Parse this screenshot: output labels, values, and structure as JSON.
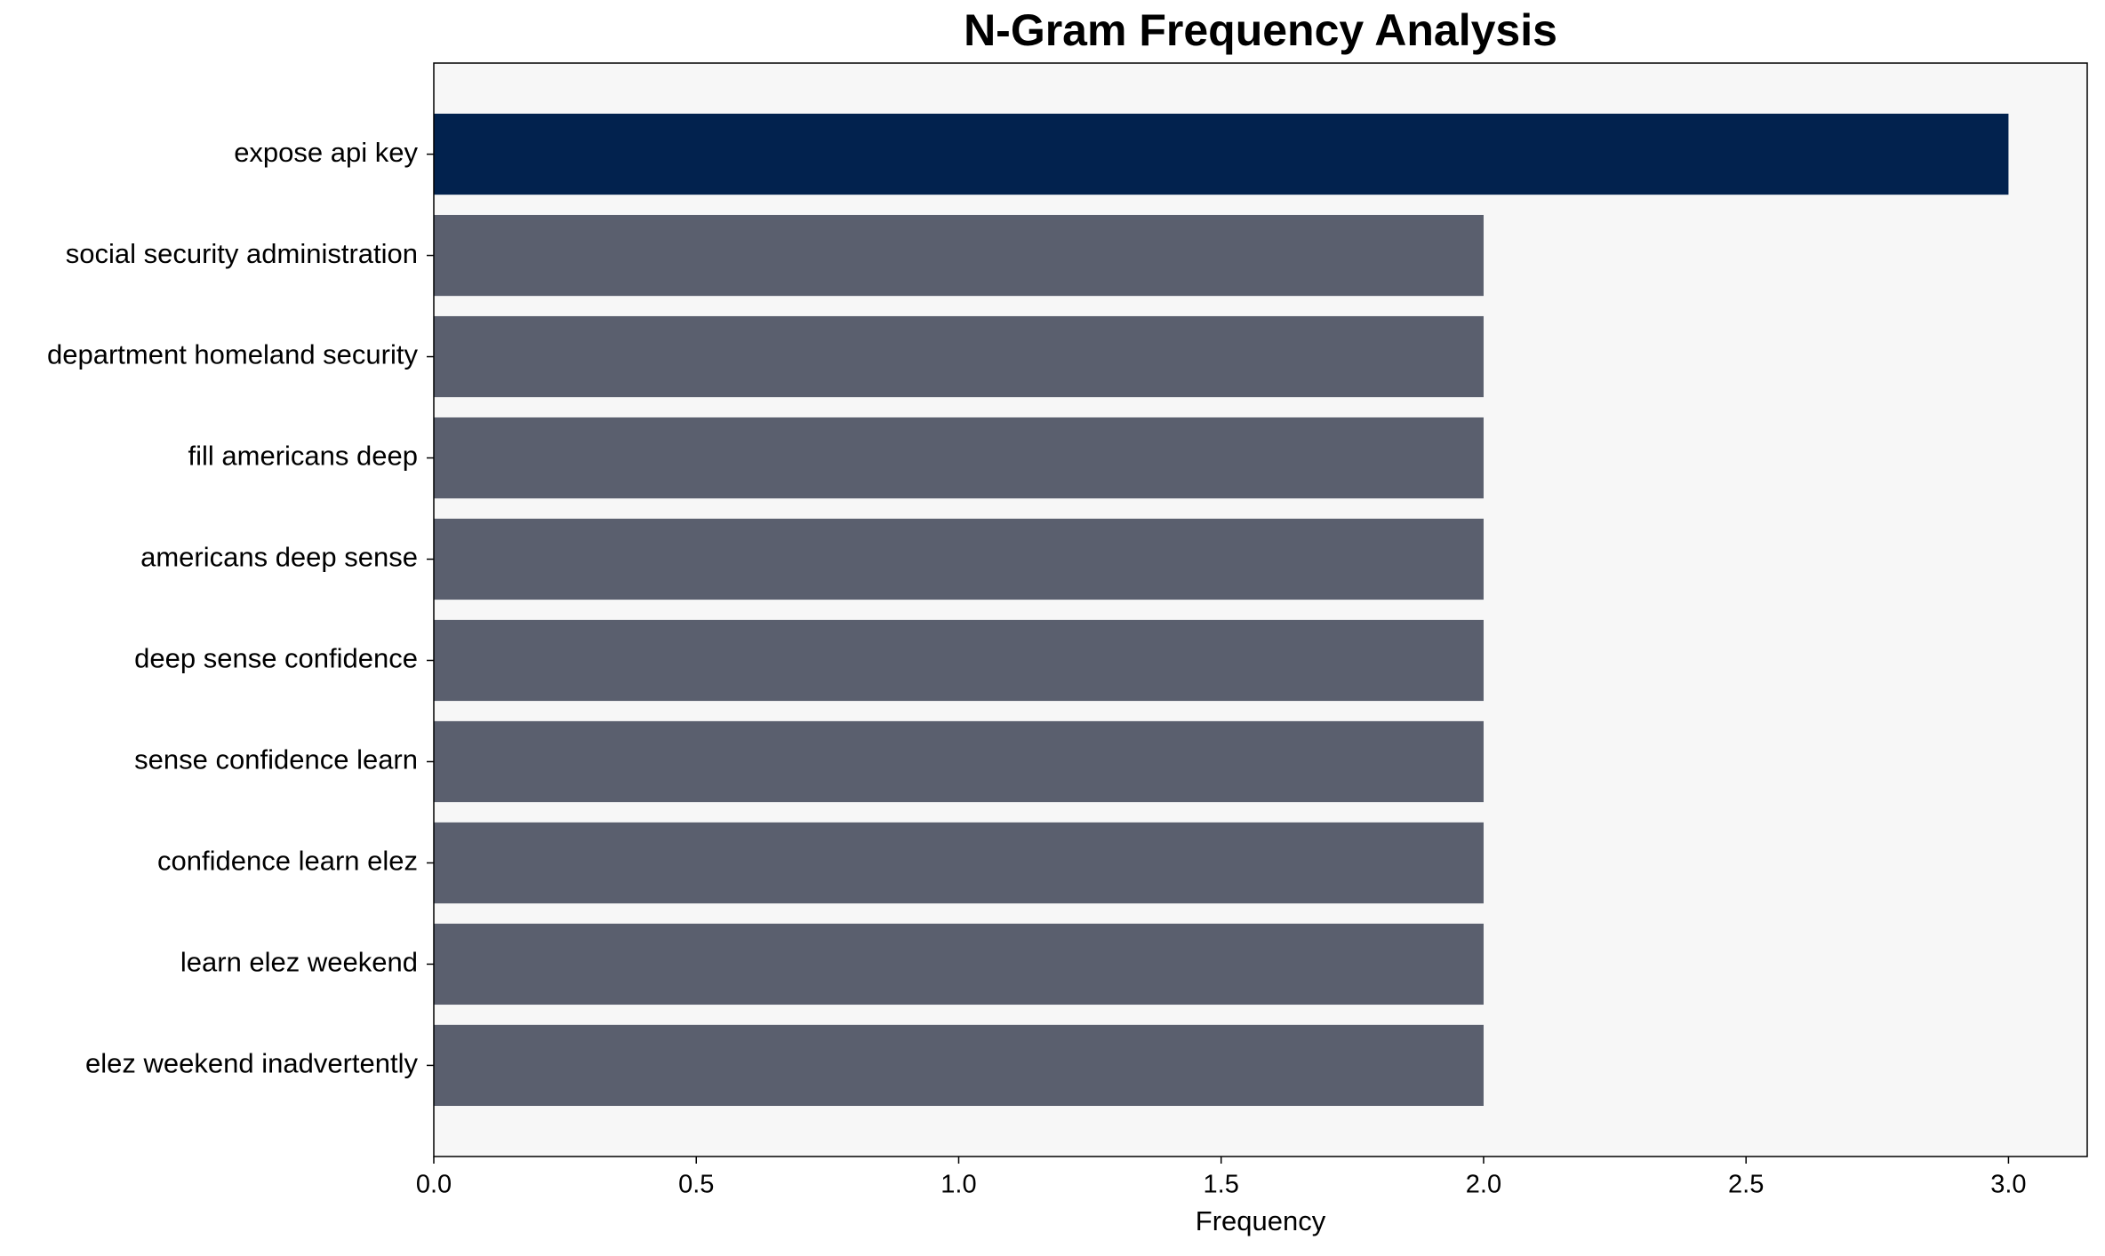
{
  "chart_data": {
    "type": "barh",
    "title": "N-Gram Frequency Analysis",
    "xlabel": "Frequency",
    "categories": [
      "expose api key",
      "social security administration",
      "department homeland security",
      "fill americans deep",
      "americans deep sense",
      "deep sense confidence",
      "sense confidence learn",
      "confidence learn elez",
      "learn elez weekend",
      "elez weekend inadvertently"
    ],
    "values": [
      3,
      2,
      2,
      2,
      2,
      2,
      2,
      2,
      2,
      2
    ],
    "colors": [
      "#02224e",
      "#5a5f6e",
      "#5a5f6e",
      "#5a5f6e",
      "#5a5f6e",
      "#5a5f6e",
      "#5a5f6e",
      "#5a5f6e",
      "#5a5f6e",
      "#5a5f6e"
    ],
    "xlim": [
      0,
      3.15
    ],
    "xticks": [
      {
        "value": 0,
        "label": "0.0"
      },
      {
        "value": 0.5,
        "label": "0.5"
      },
      {
        "value": 1,
        "label": "1.0"
      },
      {
        "value": 1.5,
        "label": "1.5"
      },
      {
        "value": 2,
        "label": "2.0"
      },
      {
        "value": 2.5,
        "label": "2.5"
      },
      {
        "value": 3,
        "label": "3.0"
      }
    ],
    "plot_background": "#f7f7f7"
  }
}
